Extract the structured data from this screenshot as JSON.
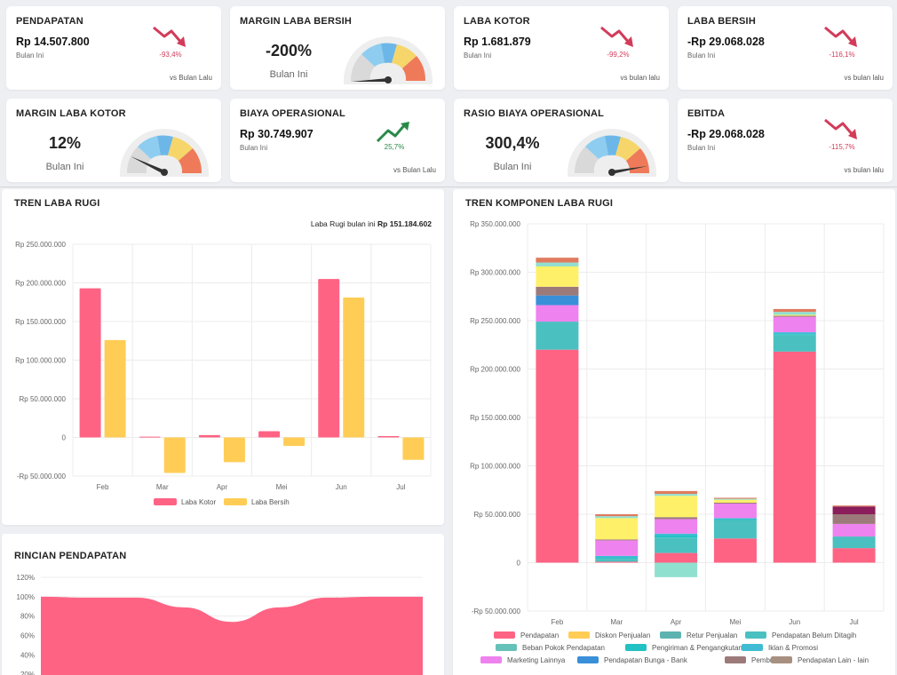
{
  "kpis": {
    "pendapatan": {
      "title": "PENDAPATAN",
      "value": "Rp 14.507.800",
      "sub": "Bulan Ini",
      "pct": "-93,4%",
      "cmp": "vs Bulan Lalu"
    },
    "margin_laba_bersih": {
      "title": "MARGIN LABA BERSIH",
      "value": "-200%",
      "sub": "Bulan Ini"
    },
    "laba_kotor": {
      "title": "LABA KOTOR",
      "value": "Rp 1.681.879",
      "sub": "Bulan Ini",
      "pct": "-99,2%",
      "cmp": "vs bulan lalu"
    },
    "laba_bersih": {
      "title": "LABA BERSIH",
      "value": "-Rp 29.068.028",
      "sub": "Bulan Ini",
      "pct": "-116,1%",
      "cmp": "vs bulan lalu"
    },
    "margin_laba_kotor": {
      "title": "MARGIN LABA KOTOR",
      "value": "12%",
      "sub": "Bulan Ini"
    },
    "biaya_operasional": {
      "title": "BIAYA OPERASIONAL",
      "value": "Rp 30.749.907",
      "sub": "Bulan Ini",
      "pct": "25,7%",
      "cmp": "vs Bulan Lalu"
    },
    "rasio_biaya_operasional": {
      "title": "RASIO BIAYA OPERASIONAL",
      "value": "300,4%",
      "sub": "Bulan Ini"
    },
    "ebitda": {
      "title": "EBITDA",
      "value": "-Rp 29.068.028",
      "sub": "Bulan Ini",
      "pct": "-115,7%",
      "cmp": "vs bulan lalu"
    }
  },
  "colors": {
    "down": "#d23c5a",
    "up": "#2a8a4a",
    "pink": "#ff6384",
    "yellow": "#ffcd56"
  },
  "tren_laba_rugi": {
    "title": "TREN LABA RUGI",
    "note_label": "Laba Rugi bulan ini",
    "note_value": "Rp 151.184.602"
  },
  "tren_komponen": {
    "title": "TREN KOMPONEN LABA RUGI"
  },
  "rincian": {
    "title": "RINCIAN PENDAPATAN"
  },
  "chart_data": [
    {
      "type": "bar",
      "title": "TREN LABA RUGI",
      "categories": [
        "Feb",
        "Mar",
        "Apr",
        "Mei",
        "Jun",
        "Jul"
      ],
      "ylim": [
        -50000000,
        250000000
      ],
      "yticks": [
        "Rp 250.000.000",
        "Rp 200.000.000",
        "Rp 150.000.000",
        "Rp 100.000.000",
        "Rp 50.000.000",
        "0",
        "-Rp 50.000.000"
      ],
      "series": [
        {
          "name": "Laba Kotor",
          "color": "#ff6384",
          "values": [
            193000000,
            1000000,
            3000000,
            8000000,
            205000000,
            1700000
          ]
        },
        {
          "name": "Laba Bersih",
          "color": "#ffcd56",
          "values": [
            126000000,
            -46000000,
            -32000000,
            -11000000,
            181000000,
            -29000000
          ]
        }
      ],
      "grid": true,
      "legend": "bottom"
    },
    {
      "type": "bar",
      "stacked": true,
      "title": "TREN KOMPONEN LABA RUGI",
      "categories": [
        "Feb",
        "Mar",
        "Apr",
        "Mei",
        "Jun",
        "Jul"
      ],
      "ylim": [
        -50000000,
        350000000
      ],
      "yticks": [
        "Rp 350.000.000",
        "Rp 300.000.000",
        "Rp 250.000.000",
        "Rp 200.000.000",
        "Rp 150.000.000",
        "Rp 100.000.000",
        "Rp 50.000.000",
        "0",
        "-Rp 50.000.000"
      ],
      "series": [
        {
          "name": "Pendapatan",
          "color": "#ff6384",
          "values": [
            220000000,
            1000000,
            10000000,
            25000000,
            218000000,
            15000000
          ]
        },
        {
          "name": "Diskon Penjualan",
          "color": "#ffcd56",
          "values": [
            0,
            0,
            0,
            0,
            0,
            0
          ]
        },
        {
          "name": "Retur Penjualan",
          "color": "#5db3b0",
          "values": [
            0,
            0,
            0,
            0,
            0,
            0
          ]
        },
        {
          "name": "Pendapatan Belum Ditagih",
          "color": "#4bc0c0",
          "values": [
            29000000,
            3000000,
            16000000,
            19000000,
            17000000,
            12000000
          ]
        },
        {
          "name": "Beban Pokok Pendapatan",
          "color": "#66c2b8",
          "values": [
            0,
            0,
            0,
            0,
            0,
            0
          ]
        },
        {
          "name": "Pengiriman & Pengangkutan",
          "color": "#22c1c3",
          "values": [
            0,
            1000000,
            2000000,
            1000000,
            1000000,
            0
          ]
        },
        {
          "name": "Iklan & Promosi",
          "color": "#3fbcd4",
          "values": [
            0,
            2000000,
            2000000,
            1000000,
            2000000,
            0
          ]
        },
        {
          "name": "Marketing Lainnya",
          "color": "#ee82ee",
          "values": [
            17000000,
            16000000,
            15000000,
            15000000,
            16000000,
            13000000
          ]
        },
        {
          "name": "Pendapatan Bunga - Bank",
          "color": "#3a8fd9",
          "values": [
            10000000,
            0,
            0,
            0,
            0,
            0
          ]
        },
        {
          "name": "Pembulatan",
          "color": "#9c7a7a",
          "values": [
            9000000,
            1000000,
            2000000,
            1000000,
            1000000,
            10000000
          ]
        },
        {
          "name": "Pendapatan Lain - lain",
          "color": "#a89080",
          "values": [
            0,
            0,
            0,
            0,
            0,
            0
          ]
        },
        {
          "name": "",
          "color": "#fff06a",
          "values": [
            21000000,
            22000000,
            22000000,
            3000000,
            1000000,
            0
          ]
        },
        {
          "name": "",
          "color": "#8a1d5a",
          "values": [
            0,
            0,
            0,
            0,
            0,
            8000000
          ]
        },
        {
          "name": "",
          "color": "#e87a6a",
          "values": [
            0,
            0,
            0,
            0,
            0,
            0
          ]
        },
        {
          "name": "",
          "color": "#90e0d0",
          "values": [
            4000000,
            2000000,
            2000000,
            1000000,
            3000000,
            0
          ]
        },
        {
          "name": "",
          "color": "#e07b5e",
          "values": [
            5000000,
            2000000,
            3000000,
            1000000,
            3000000,
            1000000
          ]
        }
      ],
      "negatives": [
        {
          "category": "Apr",
          "color": "#90e0d0",
          "value": -15000000
        }
      ],
      "legend_rows": [
        [
          "Pendapatan",
          "Diskon Penjualan",
          "Retur Penjualan",
          "Pendapatan Belum Ditagih"
        ],
        [
          "Beban Pokok Pendapatan",
          "Pengiriman & Pengangkutan",
          "Iklan & Promosi"
        ],
        [
          "Marketing Lainnya",
          "Pendapatan Bunga - Bank",
          "Pembulatan",
          "Pendapatan Lain - lain"
        ]
      ],
      "grid": true,
      "legend": "bottom"
    },
    {
      "type": "area",
      "title": "RINCIAN PENDAPATAN",
      "yticks": [
        "120%",
        "100%",
        "80%",
        "60%",
        "40%",
        "20%"
      ],
      "ylim": [
        0,
        120
      ],
      "series": [
        {
          "color": "#ff6384",
          "values": [
            100,
            99,
            99,
            89,
            74,
            89,
            99,
            100,
            100
          ]
        },
        {
          "color": "#2ecc71",
          "values": [
            0,
            0,
            0,
            0,
            8,
            0,
            0,
            0,
            0
          ]
        }
      ]
    }
  ]
}
